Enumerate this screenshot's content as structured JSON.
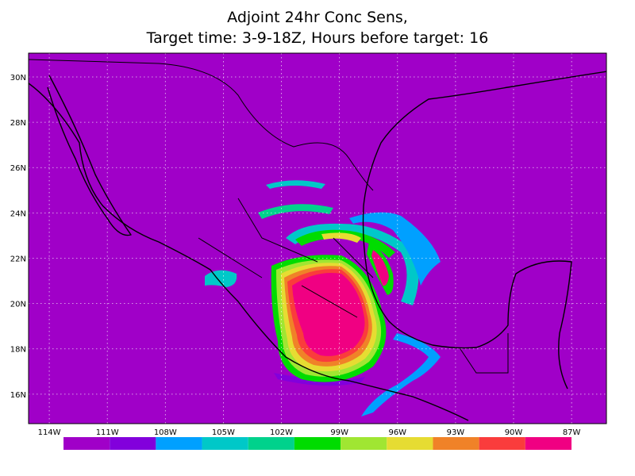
{
  "map": {
    "title": "Adjoint 24hr Conc Sens,",
    "subtitle": "Target time: 3-9-18Z, Hours before target: 16",
    "xlim": [
      -115.07,
      -85.2
    ],
    "ylim": [
      14.7,
      31.05
    ],
    "lon_ticks": [
      {
        "value": -114,
        "label": "114W"
      },
      {
        "value": -111,
        "label": "111W"
      },
      {
        "value": -108,
        "label": "108W"
      },
      {
        "value": -105,
        "label": "105W"
      },
      {
        "value": -102,
        "label": "102W"
      },
      {
        "value": -99,
        "label": "99W"
      },
      {
        "value": -96,
        "label": "96W"
      },
      {
        "value": -93,
        "label": "93W"
      },
      {
        "value": -90,
        "label": "90W"
      },
      {
        "value": -87,
        "label": "87W"
      }
    ],
    "lat_ticks": [
      {
        "value": 16,
        "label": "16N"
      },
      {
        "value": 18,
        "label": "18N"
      },
      {
        "value": 20,
        "label": "20N"
      },
      {
        "value": 22,
        "label": "22N"
      },
      {
        "value": 24,
        "label": "24N"
      },
      {
        "value": 26,
        "label": "26N"
      },
      {
        "value": 28,
        "label": "28N"
      },
      {
        "value": 30,
        "label": "30N"
      }
    ],
    "grid": true,
    "background_color": "#a000c8",
    "colorbar": [
      "#a000c8",
      "#8200dc",
      "#00a0ff",
      "#00c8c8",
      "#00d28c",
      "#00dc00",
      "#a0e632",
      "#e6dc32",
      "#f08228",
      "#fa3c3c",
      "#f00082"
    ]
  }
}
